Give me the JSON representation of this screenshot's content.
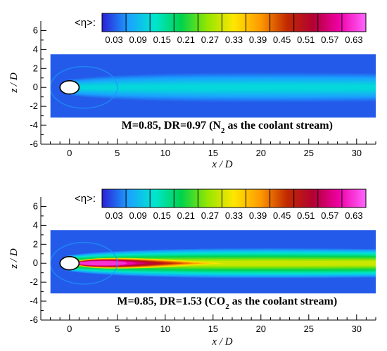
{
  "chart_data": [
    {
      "type": "heatmap",
      "title": "M=0.85, DR=0.97 (N2 as the coolant stream)",
      "caption_parts": {
        "pre": "M=0.85, DR=0.97 (N",
        "sub": "2",
        "post": " as the coolant stream)"
      },
      "xlabel": "x / D",
      "ylabel": "z / D",
      "colorbar_label": "<η>:",
      "colorbar_ticks": [
        "0.03",
        "0.09",
        "0.15",
        "0.21",
        "0.27",
        "0.33",
        "0.39",
        "0.45",
        "0.51",
        "0.57",
        "0.63"
      ],
      "colorbar_range": [
        0,
        0.66
      ],
      "xlim": [
        -3,
        32
      ],
      "ylim": [
        -6,
        7
      ],
      "xticks": [
        0,
        5,
        10,
        15,
        20,
        25,
        30
      ],
      "yticks": [
        -6,
        -4,
        -2,
        0,
        2,
        4,
        6
      ],
      "domain_x": [
        -2,
        32
      ],
      "domain_z": [
        -3.2,
        3.5
      ],
      "hole": {
        "x": 0,
        "z": 0,
        "rx": 0.5,
        "rz": 0.35
      },
      "jet_peak_eta": 0.12,
      "core_peak_eta": 0.0,
      "grid": false
    },
    {
      "type": "heatmap",
      "title": "M=0.85, DR=1.53 (CO2 as the coolant stream)",
      "caption_parts": {
        "pre": "M=0.85, DR=1.53 (CO",
        "sub": "2",
        "post": " as the coolant stream)"
      },
      "xlabel": "x / D",
      "ylabel": "z / D",
      "colorbar_label": "<η>:",
      "colorbar_ticks": [
        "0.03",
        "0.09",
        "0.15",
        "0.21",
        "0.27",
        "0.33",
        "0.39",
        "0.45",
        "0.51",
        "0.57",
        "0.63"
      ],
      "colorbar_range": [
        0,
        0.66
      ],
      "xlim": [
        -3,
        32
      ],
      "ylim": [
        -6,
        7
      ],
      "xticks": [
        0,
        5,
        10,
        15,
        20,
        25,
        30
      ],
      "yticks": [
        -6,
        -4,
        -2,
        0,
        2,
        4,
        6
      ],
      "domain_x": [
        -2,
        32
      ],
      "domain_z": [
        -3.2,
        3.5
      ],
      "hole": {
        "x": 0,
        "z": 0,
        "rx": 0.5,
        "rz": 0.35
      },
      "jet_peak_eta": 0.3,
      "core_peak_eta": 0.63,
      "grid": false
    }
  ],
  "colormap": [
    "#ffffff",
    "#2b1fd6",
    "#1ba1ff",
    "#00e6d0",
    "#00d24c",
    "#96e600",
    "#ffe600",
    "#ff9a00",
    "#c22a00",
    "#b30032",
    "#f000a8",
    "#ff66ff",
    "#ffffff"
  ]
}
